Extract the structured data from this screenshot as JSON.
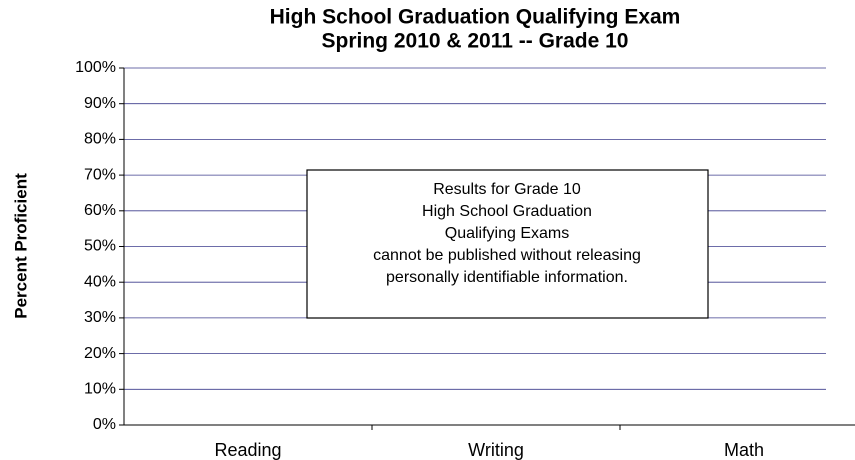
{
  "chart_data": {
    "type": "bar",
    "title": [
      "High School Graduation Qualifying Exam",
      "Spring 2010 & 2011 -- Grade 10"
    ],
    "y_label": "Percent Proficient",
    "categories": [
      "Reading",
      "Writing",
      "Math"
    ],
    "ylim": [
      0,
      100
    ],
    "yticks": [
      {
        "value": 0,
        "label": "0%"
      },
      {
        "value": 10,
        "label": "10%"
      },
      {
        "value": 20,
        "label": "20%"
      },
      {
        "value": 30,
        "label": "30%"
      },
      {
        "value": 40,
        "label": "40%"
      },
      {
        "value": 50,
        "label": "50%"
      },
      {
        "value": 60,
        "label": "60%"
      },
      {
        "value": 70,
        "label": "70%"
      },
      {
        "value": 80,
        "label": "80%"
      },
      {
        "value": 90,
        "label": "90%"
      },
      {
        "value": 100,
        "label": "100%"
      }
    ],
    "grid": true,
    "annotation": [
      "Results for Grade 10",
      "High School Graduation",
      "Qualifying Exams",
      "cannot be published without releasing",
      "personally identifiable information."
    ]
  }
}
